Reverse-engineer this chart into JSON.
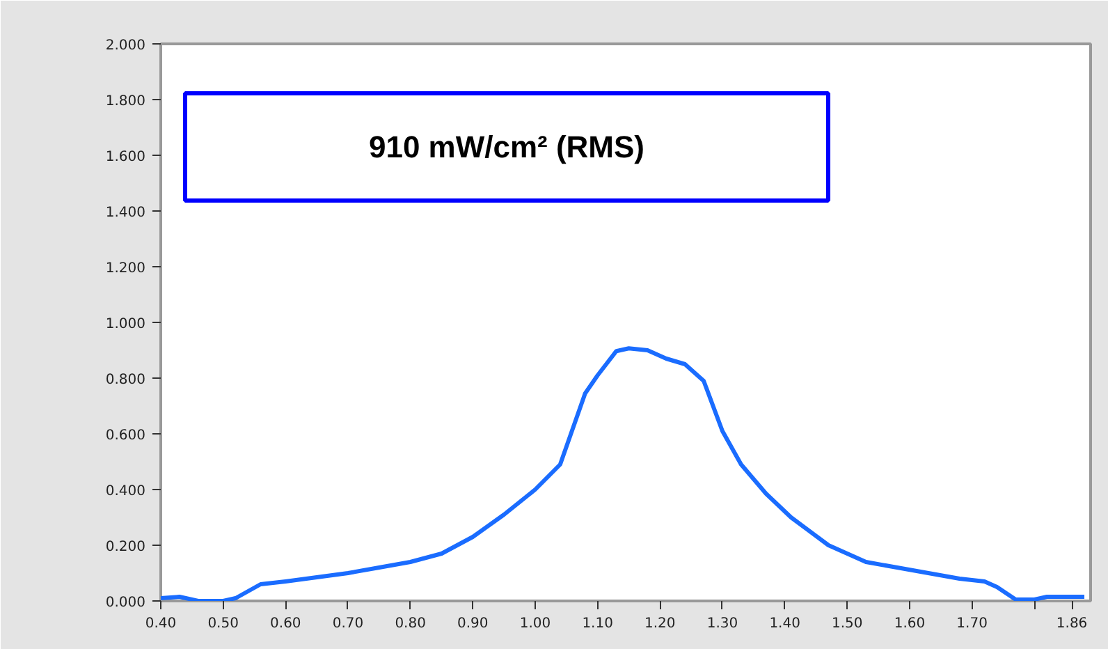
{
  "chart_data": {
    "type": "line",
    "x": [
      0.4,
      0.43,
      0.46,
      0.5,
      0.52,
      0.56,
      0.6,
      0.65,
      0.7,
      0.75,
      0.8,
      0.85,
      0.9,
      0.95,
      1.0,
      1.04,
      1.08,
      1.1,
      1.13,
      1.15,
      1.18,
      1.21,
      1.24,
      1.27,
      1.3,
      1.33,
      1.37,
      1.41,
      1.47,
      1.53,
      1.58,
      1.63,
      1.68,
      1.72,
      1.74,
      1.77,
      1.8,
      1.82,
      1.88
    ],
    "series": [
      {
        "color": "#1a6cff",
        "values": [
          0.01,
          0.015,
          0.0,
          0.0,
          0.01,
          0.06,
          0.07,
          0.085,
          0.1,
          0.12,
          0.14,
          0.17,
          0.23,
          0.31,
          0.4,
          0.49,
          0.745,
          0.81,
          0.897,
          0.907,
          0.9,
          0.87,
          0.85,
          0.79,
          0.61,
          0.49,
          0.385,
          0.3,
          0.2,
          0.14,
          0.12,
          0.1,
          0.08,
          0.07,
          0.05,
          0.005,
          0.005,
          0.015,
          0.015
        ]
      }
    ],
    "xlim": [
      0.4,
      1.89
    ],
    "ylim": [
      0,
      2
    ],
    "xticks": [
      {
        "value": 0.4,
        "label": "0.40"
      },
      {
        "value": 0.5,
        "label": "0.50"
      },
      {
        "value": 0.6,
        "label": "0.60"
      },
      {
        "value": 0.7,
        "label": "0.70"
      },
      {
        "value": 0.8,
        "label": "0.80"
      },
      {
        "value": 0.9,
        "label": "0.90"
      },
      {
        "value": 1.0,
        "label": "1.00"
      },
      {
        "value": 1.1,
        "label": "1.10"
      },
      {
        "value": 1.2,
        "label": "1.20"
      },
      {
        "value": 1.3,
        "label": "1.30"
      },
      {
        "value": 1.4,
        "label": "1.40"
      },
      {
        "value": 1.5,
        "label": "1.50"
      },
      {
        "value": 1.6,
        "label": "1.60"
      },
      {
        "value": 1.7,
        "label": "1.70"
      },
      {
        "value": 1.8,
        "label": null
      },
      {
        "value": 1.86,
        "label": "1.86"
      }
    ],
    "yticks": [
      {
        "value": 0,
        "label": "0.000"
      },
      {
        "value": 0.2,
        "label": "0.200"
      },
      {
        "value": 0.4,
        "label": "0.400"
      },
      {
        "value": 0.6,
        "label": "0.600"
      },
      {
        "value": 0.8,
        "label": "0.800"
      },
      {
        "value": 1.0,
        "label": "1.000"
      },
      {
        "value": 1.2,
        "label": "1.200"
      },
      {
        "value": 1.4,
        "label": "1.400"
      },
      {
        "value": 1.6,
        "label": "1.600"
      },
      {
        "value": 1.8,
        "label": "1.800"
      },
      {
        "value": 2.0,
        "label": "2.000"
      }
    ],
    "annotations": [
      "910 mW/cm² (RMS)"
    ],
    "grid": false
  }
}
